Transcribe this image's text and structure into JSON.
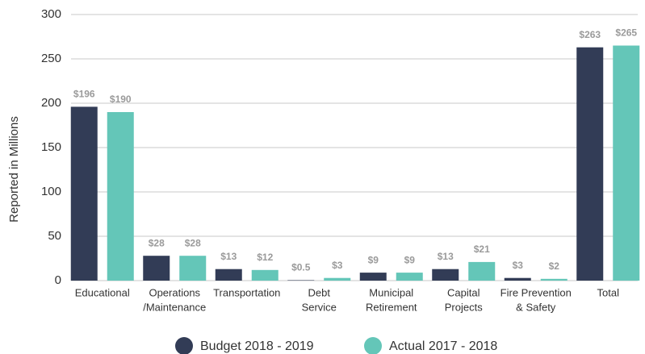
{
  "chart_data": {
    "type": "bar",
    "ylabel": "Reported in Millions",
    "categories": [
      [
        "Educational"
      ],
      [
        "Operations",
        "/Maintenance"
      ],
      [
        "Transportation"
      ],
      [
        "Debt",
        "Service"
      ],
      [
        "Municipal",
        "Retirement"
      ],
      [
        "Capital",
        "Projects"
      ],
      [
        "Fire Prevention",
        "& Safety"
      ],
      [
        "Total"
      ]
    ],
    "series": [
      {
        "name": "Budget 2018 - 2019",
        "color": "#323c56",
        "values": [
          196,
          28,
          13,
          0.5,
          9,
          13,
          3,
          263
        ],
        "value_labels": [
          "$196",
          "$28",
          "$13",
          "$0.5",
          "$9",
          "$13",
          "$3",
          "$263"
        ]
      },
      {
        "name": "Actual 2017 - 2018",
        "color": "#64c6b8",
        "values": [
          190,
          28,
          12,
          3,
          9,
          21,
          2,
          265
        ],
        "value_labels": [
          "$190",
          "$28",
          "$12",
          "$3",
          "$9",
          "$21",
          "$2",
          "$265"
        ]
      }
    ],
    "ylim": [
      0,
      300
    ],
    "yticks": [
      0,
      50,
      100,
      150,
      200,
      250,
      300
    ],
    "grid": true
  }
}
